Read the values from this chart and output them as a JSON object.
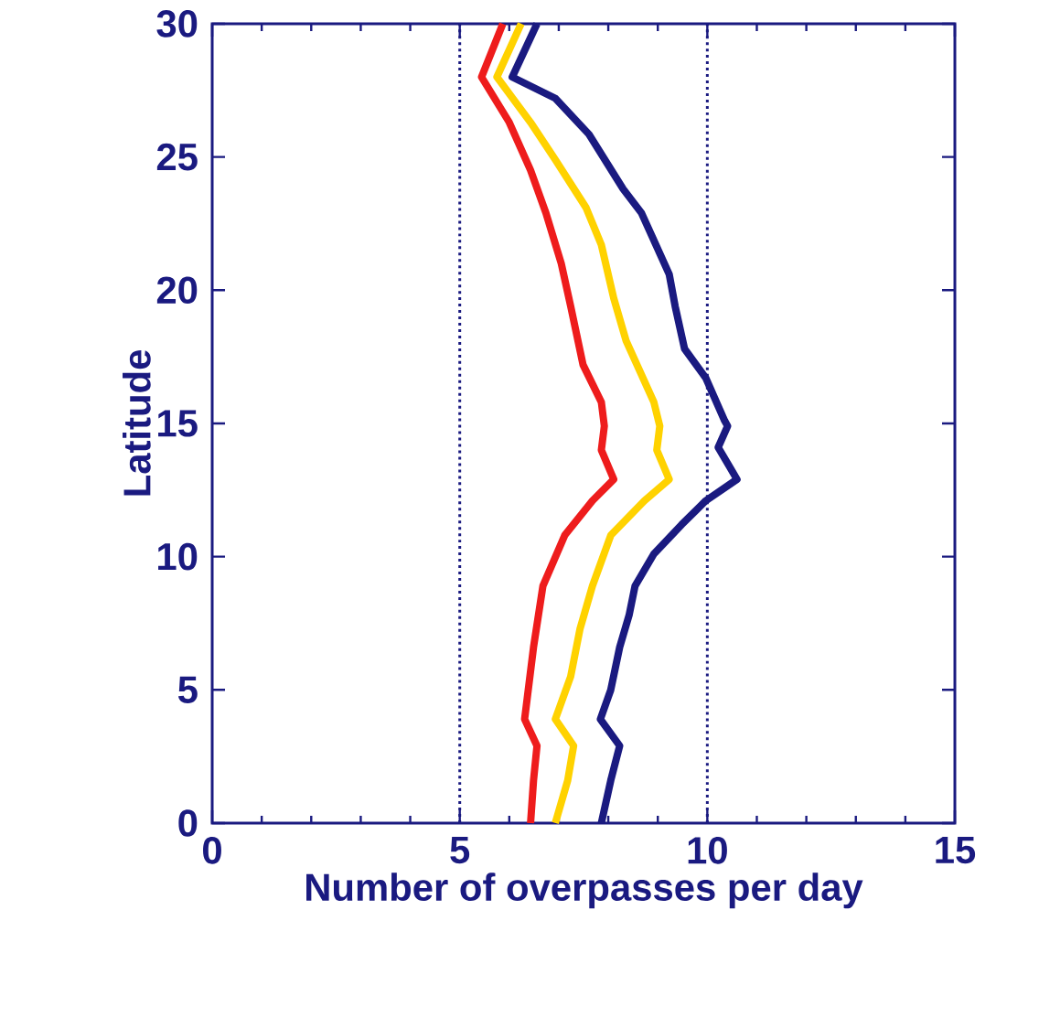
{
  "chart_data": {
    "type": "line",
    "xlabel": "Number of overpasses per day",
    "ylabel": "Latitude",
    "xlim": [
      0,
      15
    ],
    "ylim": [
      0,
      30
    ],
    "xticks": [
      0,
      5,
      10,
      15
    ],
    "yticks": [
      0,
      5,
      10,
      15,
      20,
      25,
      30
    ],
    "series": [
      {
        "color": "#1a1a80",
        "x": [
          7.86,
          8.05,
          8.23,
          7.84,
          8.05,
          8.23,
          8.42,
          8.54,
          8.92,
          9.48,
          9.97,
          10.6,
          10.22,
          10.41,
          10.35,
          9.97,
          9.54,
          9.35,
          9.23,
          8.67,
          8.3,
          7.61,
          6.93,
          6.06,
          6.56
        ],
        "values": [
          0,
          1.6,
          2.9,
          3.9,
          5.0,
          6.6,
          7.8,
          8.9,
          10.1,
          11.2,
          12.1,
          12.9,
          14.1,
          14.9,
          15.1,
          16.7,
          17.8,
          19.4,
          20.6,
          22.9,
          23.8,
          25.85,
          27.2,
          28.0,
          30
        ]
      },
      {
        "color": "#ffd200",
        "x": [
          6.93,
          7.18,
          7.3,
          6.93,
          7.24,
          7.43,
          7.68,
          8.05,
          8.73,
          9.23,
          8.98,
          9.04,
          8.92,
          8.36,
          8.11,
          7.86,
          7.55,
          6.93,
          6.43,
          5.75,
          6.24
        ],
        "values": [
          0,
          1.6,
          2.9,
          3.9,
          5.5,
          7.3,
          8.9,
          10.8,
          12.1,
          12.9,
          14.0,
          14.9,
          15.8,
          18.1,
          19.7,
          21.7,
          23.1,
          24.9,
          26.3,
          28.0,
          30
        ]
      },
      {
        "color": "#ee1c1c",
        "x": [
          6.43,
          6.49,
          6.56,
          6.31,
          6.49,
          6.68,
          7.12,
          7.68,
          8.11,
          7.86,
          7.92,
          7.86,
          7.49,
          7.24,
          7.05,
          6.74,
          6.43,
          6.0,
          5.44,
          5.87
        ],
        "values": [
          0,
          1.6,
          2.9,
          3.9,
          6.6,
          8.9,
          10.8,
          12.1,
          12.9,
          14.0,
          14.9,
          15.8,
          17.2,
          19.4,
          21.0,
          22.9,
          24.5,
          26.3,
          28.0,
          30
        ]
      }
    ],
    "ref_lines": [
      {
        "axis": "x",
        "value": 5,
        "color": "#1a1a80",
        "line_style": "dotted"
      },
      {
        "axis": "x",
        "value": 10,
        "color": "#1a1a80",
        "line_style": "dotted"
      }
    ]
  }
}
